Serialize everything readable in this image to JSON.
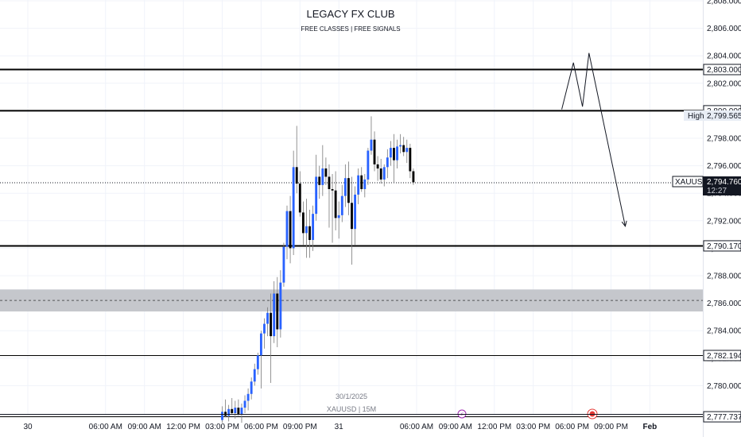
{
  "header": {
    "title": "LEGACY FX CLUB",
    "subtitle": "FREE CLASSES | FREE SIGNALS"
  },
  "watermark": {
    "date": "30/1/2025",
    "symbol_info": "XAUUSD | 15M"
  },
  "colors": {
    "bull": "#2962ff",
    "bear": "#000000",
    "zone": "#c5c7cc",
    "grid": "#f0f3fa",
    "text": "#131722",
    "muted": "#787b86"
  },
  "price_tags": {
    "symbol": "XAUUSD",
    "current_price": "2,794.760",
    "countdown": "12:27",
    "high_label": "High",
    "high_price": "2,799.565"
  },
  "chart_data": {
    "type": "candlestick",
    "symbol": "XAUUSD",
    "timeframe": "15M",
    "ylim": [
      2777.2,
      2808.5
    ],
    "y_ticks": [
      "2,780.000",
      "2,782.000",
      "2,784.000",
      "2,786.000",
      "2,788.000",
      "2,790.000",
      "2,792.000",
      "2,794.000",
      "2,796.000",
      "2,798.000",
      "2,800.000",
      "2,802.000",
      "2,804.000",
      "2,806.000",
      "2,808.000"
    ],
    "y_tick_values": [
      2780,
      2782,
      2784,
      2786,
      2788,
      2790,
      2792,
      2794,
      2796,
      2798,
      2800,
      2802,
      2804,
      2806,
      2808
    ],
    "x_ticks": [
      {
        "label": "30",
        "h": 0
      },
      {
        "label": "06:00 AM",
        "h": 6
      },
      {
        "label": "09:00 AM",
        "h": 9
      },
      {
        "label": "12:00 PM",
        "h": 12
      },
      {
        "label": "03:00 PM",
        "h": 15
      },
      {
        "label": "06:00 PM",
        "h": 18
      },
      {
        "label": "09:00 PM",
        "h": 21
      },
      {
        "label": "31",
        "h": 24
      },
      {
        "label": "06:00 AM",
        "h": 30
      },
      {
        "label": "09:00 AM",
        "h": 33
      },
      {
        "label": "12:00 PM",
        "h": 36
      },
      {
        "label": "03:00 PM",
        "h": 39
      },
      {
        "label": "06:00 PM",
        "h": 42
      },
      {
        "label": "09:00 PM",
        "h": 45
      },
      {
        "label": "Feb",
        "h": 48
      }
    ],
    "levels": [
      {
        "price": 2803.0,
        "label": "2,803.000",
        "width": 2
      },
      {
        "price": 2800.0,
        "label": "2,800.000",
        "width": 2
      },
      {
        "price": 2790.17,
        "label": "2,790.170",
        "width": 2
      },
      {
        "price": 2782.194,
        "label": "2,782.194",
        "width": 1
      },
      {
        "price": 2777.737,
        "label": "2,777.737",
        "width": 1
      }
    ],
    "zone": {
      "top": 2787.0,
      "bottom": 2785.4,
      "mid": 2786.2
    },
    "current_price": 2794.76,
    "high": 2799.565,
    "projection": [
      {
        "h": 41.2,
        "p": 2800.1
      },
      {
        "h": 42.1,
        "p": 2803.5
      },
      {
        "h": 42.8,
        "p": 2800.3
      },
      {
        "h": 43.3,
        "p": 2804.2
      },
      {
        "h": 46.1,
        "p": 2791.6
      }
    ],
    "candles_start_h": 15.0,
    "candle_step_h": 0.25,
    "candles": [
      [
        2777.5,
        2778.5,
        2777.3,
        2778.1
      ],
      [
        2778.1,
        2779.0,
        2777.7,
        2777.8
      ],
      [
        2777.8,
        2778.6,
        2777.4,
        2778.3
      ],
      [
        2778.3,
        2779.1,
        2777.9,
        2778.0
      ],
      [
        2778.0,
        2778.9,
        2777.6,
        2778.4
      ],
      [
        2778.4,
        2779.0,
        2777.8,
        2777.9
      ],
      [
        2777.9,
        2778.7,
        2777.3,
        2778.4
      ],
      [
        2778.4,
        2779.3,
        2778.0,
        2778.9
      ],
      [
        2778.9,
        2779.8,
        2778.2,
        2779.4
      ],
      [
        2779.4,
        2780.6,
        2779.0,
        2780.3
      ],
      [
        2780.3,
        2781.6,
        2780.0,
        2781.2
      ],
      [
        2781.2,
        2782.4,
        2780.8,
        2782.2
      ],
      [
        2782.2,
        2784.0,
        2779.8,
        2783.8
      ],
      [
        2783.8,
        2784.9,
        2782.7,
        2784.5
      ],
      [
        2784.5,
        2785.7,
        2783.6,
        2785.3
      ],
      [
        2785.3,
        2786.7,
        2780.2,
        2783.6
      ],
      [
        2783.6,
        2787.6,
        2783.1,
        2786.7
      ],
      [
        2786.7,
        2787.9,
        2782.8,
        2784.1
      ],
      [
        2784.1,
        2788.4,
        2783.5,
        2787.5
      ],
      [
        2787.5,
        2790.4,
        2787.2,
        2790.1
      ],
      [
        2790.1,
        2793.1,
        2789.2,
        2792.7
      ],
      [
        2792.7,
        2793.8,
        2788.9,
        2790.0
      ],
      [
        2790.0,
        2797.1,
        2789.5,
        2795.9
      ],
      [
        2795.9,
        2798.9,
        2794.0,
        2794.7
      ],
      [
        2794.7,
        2795.6,
        2792.3,
        2792.6
      ],
      [
        2792.6,
        2793.4,
        2790.2,
        2791.1
      ],
      [
        2791.1,
        2793.6,
        2789.3,
        2791.6
      ],
      [
        2791.6,
        2792.8,
        2789.3,
        2790.6
      ],
      [
        2790.6,
        2793.1,
        2789.8,
        2792.5
      ],
      [
        2792.5,
        2796.8,
        2792.0,
        2795.2
      ],
      [
        2795.2,
        2796.0,
        2793.6,
        2794.6
      ],
      [
        2794.6,
        2797.5,
        2793.8,
        2795.8
      ],
      [
        2795.8,
        2796.6,
        2794.6,
        2795.2
      ],
      [
        2795.2,
        2796.1,
        2791.5,
        2794.3
      ],
      [
        2794.3,
        2795.4,
        2790.4,
        2794.2
      ],
      [
        2794.2,
        2795.6,
        2791.3,
        2792.2
      ],
      [
        2792.2,
        2793.4,
        2790.7,
        2792.4
      ],
      [
        2792.4,
        2794.6,
        2791.9,
        2793.8
      ],
      [
        2793.8,
        2796.1,
        2793.0,
        2795.1
      ],
      [
        2795.1,
        2796.3,
        2792.4,
        2793.3
      ],
      [
        2793.3,
        2795.2,
        2788.8,
        2791.4
      ],
      [
        2791.4,
        2794.5,
        2790.2,
        2793.9
      ],
      [
        2793.9,
        2795.8,
        2793.2,
        2795.3
      ],
      [
        2795.3,
        2795.9,
        2794.1,
        2794.3
      ],
      [
        2794.3,
        2795.4,
        2793.7,
        2795.0
      ],
      [
        2795.0,
        2797.3,
        2794.6,
        2797.1
      ],
      [
        2797.1,
        2799.6,
        2796.8,
        2797.9
      ],
      [
        2797.9,
        2798.5,
        2795.6,
        2796.1
      ],
      [
        2796.1,
        2796.7,
        2794.9,
        2795.8
      ],
      [
        2795.8,
        2796.5,
        2794.7,
        2795.0
      ],
      [
        2795.0,
        2796.1,
        2794.5,
        2795.9
      ],
      [
        2795.9,
        2797.2,
        2795.1,
        2796.6
      ],
      [
        2796.6,
        2797.8,
        2796.0,
        2797.3
      ],
      [
        2797.3,
        2798.3,
        2794.8,
        2796.4
      ],
      [
        2796.4,
        2797.9,
        2795.8,
        2797.4
      ],
      [
        2797.4,
        2798.3,
        2796.9,
        2797.5
      ],
      [
        2797.5,
        2798.1,
        2796.7,
        2797.0
      ],
      [
        2797.0,
        2797.9,
        2796.2,
        2797.3
      ],
      [
        2797.3,
        2797.6,
        2795.1,
        2795.6
      ],
      [
        2795.6,
        2795.8,
        2794.6,
        2794.8
      ]
    ]
  }
}
